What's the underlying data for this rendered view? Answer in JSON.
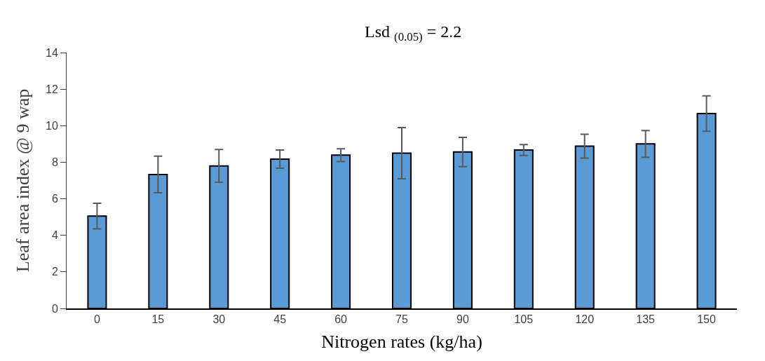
{
  "chart_data": {
    "type": "bar",
    "title": "Lsd $_{(0.05)}$ = 2.2",
    "xlabel": "Nitrogen rates (kg/ha)",
    "ylabel": "Leaf area index @ 9 wap",
    "categories": [
      "0",
      "15",
      "30",
      "45",
      "60",
      "75",
      "90",
      "105",
      "120",
      "135",
      "150"
    ],
    "values": [
      5.05,
      7.33,
      7.8,
      8.17,
      8.39,
      8.5,
      8.56,
      8.67,
      8.88,
      9.0,
      10.66
    ],
    "errors": [
      0.7,
      1.0,
      0.9,
      0.5,
      0.35,
      1.4,
      0.8,
      0.3,
      0.65,
      0.73,
      0.97
    ],
    "color": "#5b9bd5",
    "ylim": [
      0,
      14
    ],
    "yticks": [
      0,
      2,
      4,
      6,
      8,
      10,
      12,
      14
    ],
    "legend": false
  }
}
